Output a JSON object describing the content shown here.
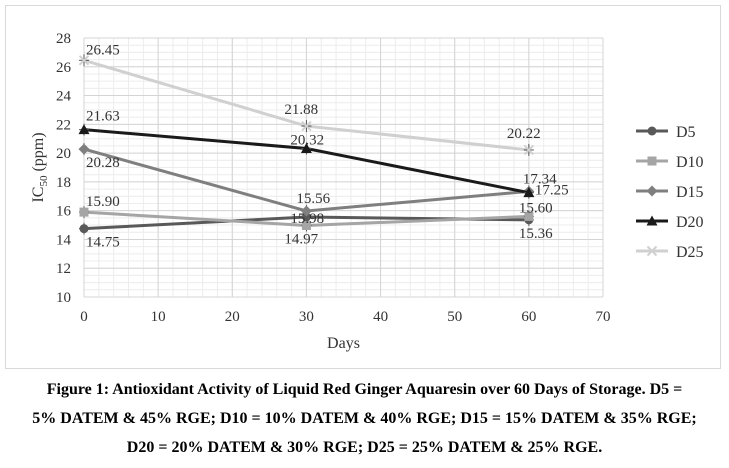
{
  "chart_data": {
    "type": "line",
    "xlabel": "Days",
    "ylabel_main": "IC",
    "ylabel_sub": "50",
    "ylabel_unit": " (ppm)",
    "x": [
      0,
      30,
      60
    ],
    "xlim": [
      0,
      70
    ],
    "ylim": [
      10,
      28
    ],
    "xticks": [
      0,
      10,
      20,
      30,
      40,
      50,
      60,
      70
    ],
    "yticks": [
      10,
      12,
      14,
      16,
      18,
      20,
      22,
      24,
      26,
      28
    ],
    "grid": true,
    "legend_position": "right",
    "series": [
      {
        "name": "D5",
        "values": [
          14.75,
          15.56,
          15.36
        ],
        "labels": [
          "14.75",
          "15.56",
          "15.36"
        ],
        "color": "#595959",
        "marker": "circle"
      },
      {
        "name": "D10",
        "values": [
          15.9,
          14.97,
          15.6
        ],
        "labels": [
          "15.90",
          "14.97",
          "15.60"
        ],
        "color": "#a5a5a5",
        "marker": "square"
      },
      {
        "name": "D15",
        "values": [
          20.28,
          15.98,
          17.34
        ],
        "labels": [
          "20.28",
          "15.98",
          "17.34"
        ],
        "color": "#7f7f7f",
        "marker": "diamond"
      },
      {
        "name": "D20",
        "values": [
          21.63,
          20.32,
          17.25
        ],
        "labels": [
          "21.63",
          "20.32",
          "17.25"
        ],
        "color": "#1a1a1a",
        "marker": "triangle"
      },
      {
        "name": "D25",
        "values": [
          26.45,
          21.88,
          20.22
        ],
        "labels": [
          "26.45",
          "21.88",
          "20.22"
        ],
        "color": "#d0d0d0",
        "marker": "x"
      }
    ]
  },
  "caption": {
    "line1": "Figure 1: Antioxidant Activity of    Liquid Red Ginger Aquaresin over 60 Days of Storage. D5 =",
    "line2": "5% DATEM & 45% RGE; D10 = 10% DATEM & 40% RGE; D15 = 15% DATEM & 35% RGE;",
    "line3": "D20 = 20% DATEM & 30% RGE; D25 = 25% DATEM & 25% RGE."
  }
}
